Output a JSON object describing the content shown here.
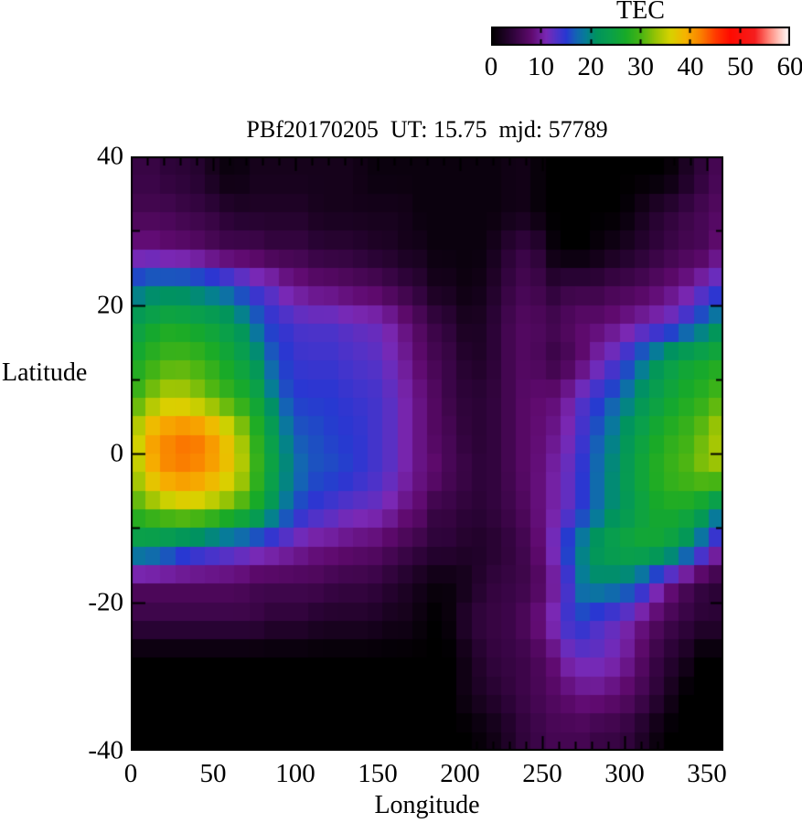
{
  "title": "PBf20170205  UT: 15.75  mjd: 57789",
  "colorbar": {
    "title": "TEC",
    "min": 0,
    "max": 60,
    "ticks": [
      0,
      10,
      20,
      30,
      40,
      50,
      60
    ]
  },
  "axes": {
    "xlabel": "Longitude",
    "ylabel": "Latitude",
    "x_tick_labels": [
      0,
      50,
      100,
      150,
      200,
      250,
      300,
      350
    ],
    "y_tick_labels": [
      40,
      20,
      0,
      -20,
      -40
    ],
    "xlim": [
      0,
      360
    ],
    "ylim": [
      -40,
      40
    ],
    "x_minor_step": 10,
    "y_minor_step": 10
  },
  "chart_data": {
    "type": "heatmap",
    "title": "PBf20170205  UT: 15.75  mjd: 57789",
    "xlabel": "Longitude",
    "ylabel": "Latitude",
    "xlim": [
      0,
      360
    ],
    "ylim": [
      -40,
      40
    ],
    "colorbar": {
      "label": "TEC",
      "min": 0,
      "max": 60,
      "ticks": [
        0,
        10,
        20,
        30,
        40,
        50,
        60
      ]
    },
    "lon_centers": [
      5,
      15,
      25,
      35,
      45,
      55,
      65,
      75,
      85,
      95,
      105,
      115,
      125,
      135,
      145,
      155,
      165,
      175,
      185,
      195,
      205,
      215,
      225,
      235,
      245,
      255,
      265,
      275,
      285,
      295,
      305,
      315,
      325,
      335,
      345,
      355
    ],
    "lat_centers": [
      37.5,
      32.5,
      27.5,
      22.5,
      17.5,
      12.5,
      7.5,
      2.5,
      -2.5,
      -7.5,
      -12.5,
      -17.5,
      -22.5,
      -27.5,
      -32.5,
      -37.5
    ],
    "values_tec": [
      [
        5,
        5,
        4,
        4,
        3,
        1,
        1,
        2,
        2,
        2,
        2,
        2,
        2,
        2,
        1,
        1,
        1,
        1,
        1,
        1,
        1,
        1,
        1,
        2,
        1,
        0,
        0,
        0,
        0,
        0,
        0,
        0,
        0,
        2,
        4,
        6
      ],
      [
        6,
        6,
        6,
        5,
        5,
        4,
        3,
        3,
        3,
        3,
        3,
        2,
        2,
        2,
        2,
        2,
        2,
        1,
        1,
        1,
        1,
        1,
        1,
        2,
        1,
        0,
        0,
        0,
        0,
        0,
        1,
        3,
        4,
        5,
        6,
        7
      ],
      [
        9,
        9,
        8,
        8,
        7,
        6,
        6,
        6,
        5,
        5,
        5,
        4,
        4,
        4,
        3,
        3,
        2,
        2,
        1,
        1,
        1,
        1,
        3,
        5,
        5,
        1,
        0,
        0,
        1,
        2,
        3,
        4,
        5,
        6,
        6,
        8
      ],
      [
        18,
        19,
        19,
        19,
        18,
        17,
        15,
        13,
        12,
        10,
        9,
        8,
        8,
        7,
        7,
        6,
        5,
        4,
        2,
        2,
        1,
        2,
        4,
        6,
        6,
        4,
        5,
        5,
        5,
        6,
        6,
        7,
        8,
        9,
        11,
        13
      ],
      [
        24,
        26,
        27,
        26,
        25,
        24,
        22,
        18,
        15,
        14,
        13,
        13,
        13,
        12,
        12,
        11,
        9,
        7,
        5,
        4,
        2,
        3,
        5,
        7,
        7,
        6,
        7,
        8,
        8,
        9,
        10,
        11,
        12,
        14,
        17,
        20
      ],
      [
        27,
        29,
        30,
        30,
        29,
        27,
        25,
        22,
        17,
        15,
        14,
        14,
        14,
        13,
        13,
        12,
        10,
        8,
        6,
        5,
        3,
        3,
        5,
        7,
        7,
        5,
        6,
        8,
        11,
        13,
        16,
        20,
        23,
        25,
        26,
        27
      ],
      [
        30,
        33,
        35,
        34,
        32,
        30,
        28,
        26,
        20,
        16,
        15,
        15,
        15,
        14,
        14,
        13,
        11,
        9,
        7,
        5,
        4,
        4,
        5,
        7,
        8,
        8,
        10,
        13,
        15,
        17,
        20,
        23,
        25,
        27,
        28,
        30
      ],
      [
        36,
        41,
        42,
        43,
        42,
        39,
        35,
        29,
        24,
        19,
        16,
        16,
        15,
        15,
        14,
        13,
        11,
        9,
        7,
        6,
        4,
        4,
        5,
        7,
        8,
        9,
        11,
        14,
        17,
        20,
        23,
        26,
        28,
        29,
        31,
        34
      ],
      [
        35,
        40,
        42,
        42,
        41,
        39,
        36,
        30,
        25,
        20,
        17,
        16,
        16,
        15,
        14,
        13,
        11,
        9,
        8,
        6,
        5,
        4,
        5,
        7,
        8,
        10,
        12,
        15,
        18,
        21,
        24,
        27,
        29,
        30,
        32,
        33
      ],
      [
        30,
        32,
        34,
        35,
        34,
        32,
        30,
        27,
        22,
        18,
        15,
        14,
        13,
        12,
        12,
        11,
        9,
        8,
        5,
        5,
        4,
        4,
        5,
        6,
        8,
        10,
        12,
        15,
        18,
        21,
        23,
        26,
        27,
        27,
        25,
        21
      ],
      [
        22,
        21,
        19,
        17,
        16,
        15,
        14,
        13,
        12,
        11,
        10,
        9,
        9,
        8,
        8,
        7,
        6,
        5,
        4,
        4,
        3,
        3,
        4,
        5,
        7,
        11,
        16,
        20,
        23,
        25,
        26,
        26,
        25,
        22,
        17,
        12
      ],
      [
        7,
        7,
        7,
        7,
        7,
        7,
        7,
        6,
        6,
        6,
        6,
        6,
        5,
        5,
        5,
        4,
        3,
        2,
        1,
        1,
        2,
        4,
        5,
        5,
        6,
        9,
        13,
        19,
        20,
        19,
        18,
        14,
        10,
        7,
        5,
        4
      ],
      [
        5,
        5,
        5,
        5,
        5,
        5,
        5,
        5,
        4,
        4,
        4,
        3,
        3,
        3,
        3,
        2,
        2,
        1,
        0,
        1,
        4,
        5,
        5,
        6,
        8,
        11,
        14,
        15,
        13,
        12,
        10,
        8,
        6,
        5,
        4,
        4
      ],
      [
        0,
        0,
        0,
        0,
        0,
        0,
        0,
        0,
        0,
        0,
        0,
        0,
        0,
        0,
        0,
        0,
        0,
        0,
        0,
        0,
        2,
        4,
        5,
        5,
        6,
        8,
        11,
        12,
        12,
        11,
        9,
        6,
        4,
        3,
        0,
        0
      ],
      [
        0,
        0,
        0,
        0,
        0,
        0,
        0,
        0,
        0,
        0,
        0,
        0,
        0,
        0,
        0,
        0,
        0,
        0,
        0,
        0,
        2,
        3,
        4,
        5,
        6,
        7,
        8,
        9,
        9,
        8,
        7,
        5,
        3,
        0,
        0,
        0
      ],
      [
        0,
        0,
        0,
        0,
        0,
        0,
        0,
        0,
        0,
        0,
        0,
        0,
        0,
        0,
        0,
        0,
        0,
        0,
        0,
        0,
        0,
        1,
        2,
        4,
        5,
        6,
        6,
        6,
        5,
        5,
        4,
        2,
        0,
        0,
        0,
        0
      ]
    ],
    "colormap_stops": [
      [
        0,
        "#000000"
      ],
      [
        4,
        "#2b0336"
      ],
      [
        8,
        "#5f0a6e"
      ],
      [
        11,
        "#7a28b4"
      ],
      [
        13,
        "#5032c8"
      ],
      [
        15,
        "#2837d2"
      ],
      [
        17,
        "#1464b4"
      ],
      [
        19,
        "#067d96"
      ],
      [
        21,
        "#00935f"
      ],
      [
        24,
        "#0aa04a"
      ],
      [
        27,
        "#18aa28"
      ],
      [
        30,
        "#46b414"
      ],
      [
        33,
        "#96c305"
      ],
      [
        36,
        "#d7d200"
      ],
      [
        39,
        "#f5b400"
      ],
      [
        42,
        "#fa8200"
      ],
      [
        45,
        "#ff3c00"
      ],
      [
        48,
        "#ff0a00"
      ],
      [
        53,
        "#f51e1e"
      ],
      [
        56,
        "#ff8a7d"
      ],
      [
        58,
        "#ffc8c0"
      ],
      [
        60,
        "#ffffff"
      ]
    ],
    "frame_color": "#000000",
    "background_color": "#ffffff"
  }
}
